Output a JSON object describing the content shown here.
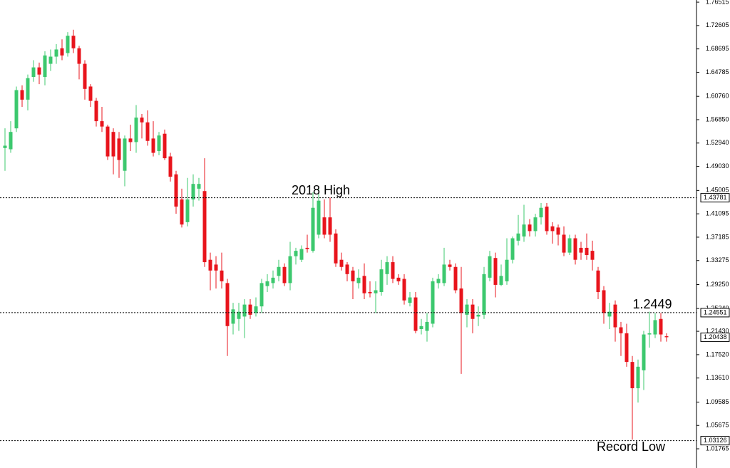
{
  "chart_data": {
    "type": "candlestick",
    "ylim": [
      0.9855,
      1.7688
    ],
    "yticks": [
      1.76515,
      1.72605,
      1.68695,
      1.64785,
      {
        "value": 1.6076,
        "label": "1.60760"
      },
      {
        "value": 1.5685,
        "label": "1.56850"
      },
      {
        "value": 1.5294,
        "label": "1.52940"
      },
      {
        "value": 1.4903,
        "label": "1.49030"
      },
      1.45005,
      1.41095,
      1.37185,
      1.33275,
      {
        "value": 1.2925,
        "label": "1.29250"
      },
      {
        "value": 1.2524,
        "label": "1.25240"
      },
      {
        "value": 1.2143,
        "label": "1.21430"
      },
      {
        "value": 1.1752,
        "label": "1.17520"
      },
      {
        "value": 1.1361,
        "label": "1.13610"
      },
      1.09585,
      1.05675,
      1.01765
    ],
    "up_color": "#3cc86e",
    "down_color": "#e8141c",
    "open": [
      1.521,
      1.519,
      1.554,
      1.618,
      1.602,
      1.64,
      1.656,
      1.64,
      1.662,
      1.674,
      1.688,
      1.68,
      1.709,
      1.688,
      1.662,
      1.624,
      1.6,
      1.566,
      1.557,
      1.548,
      1.537,
      1.483,
      1.537,
      1.531,
      1.572,
      1.564,
      1.537,
      1.516,
      1.545,
      1.507,
      1.477,
      1.435,
      1.397,
      1.435,
      1.453,
      1.449,
      1.334,
      1.326,
      1.316,
      1.295,
      1.227,
      1.235,
      1.239,
      1.259,
      1.245,
      1.256,
      1.29,
      1.295,
      1.307,
      1.322,
      1.295,
      1.34,
      1.334,
      1.354,
      1.349,
      1.376,
      1.405,
      1.405,
      1.378,
      1.334,
      1.326,
      1.316,
      1.295,
      1.307,
      1.28,
      1.278,
      1.28,
      1.31,
      1.33,
      1.304,
      1.302,
      1.262,
      1.271,
      1.218,
      1.215,
      1.227,
      1.295,
      1.295,
      1.326,
      1.322,
      1.286,
      1.242,
      1.259,
      1.239,
      1.242,
      1.304,
      1.337,
      1.292,
      1.298,
      1.334,
      1.366,
      1.373,
      1.393,
      1.382,
      1.405,
      1.423,
      1.39,
      1.388,
      1.376,
      1.346,
      1.37,
      1.354,
      1.354,
      1.349,
      1.316,
      1.283,
      1.239,
      1.259,
      1.221,
      1.211,
      1.163,
      1.119,
      1.149,
      1.209,
      1.209,
      1.235,
      1.206
    ],
    "high": [
      1.554,
      1.566,
      1.624,
      1.626,
      1.644,
      1.668,
      1.664,
      1.683,
      1.686,
      1.695,
      1.703,
      1.715,
      1.719,
      1.692,
      1.668,
      1.628,
      1.605,
      1.59,
      1.56,
      1.554,
      1.548,
      1.542,
      1.56,
      1.593,
      1.578,
      1.584,
      1.566,
      1.548,
      1.552,
      1.513,
      1.483,
      1.453,
      1.471,
      1.477,
      1.471,
      1.504,
      1.346,
      1.34,
      1.346,
      1.302,
      1.262,
      1.262,
      1.268,
      1.268,
      1.271,
      1.302,
      1.31,
      1.316,
      1.334,
      1.328,
      1.364,
      1.354,
      1.358,
      1.376,
      1.447,
      1.457,
      1.435,
      1.438,
      1.385,
      1.346,
      1.33,
      1.322,
      1.318,
      1.328,
      1.298,
      1.298,
      1.334,
      1.34,
      1.34,
      1.31,
      1.31,
      1.28,
      1.28,
      1.235,
      1.245,
      1.304,
      1.31,
      1.354,
      1.334,
      1.328,
      1.322,
      1.268,
      1.268,
      1.256,
      1.322,
      1.349,
      1.346,
      1.326,
      1.37,
      1.373,
      1.409,
      1.426,
      1.402,
      1.411,
      1.429,
      1.429,
      1.397,
      1.393,
      1.39,
      1.376,
      1.376,
      1.364,
      1.378,
      1.366,
      1.322,
      1.29,
      1.262,
      1.266,
      1.23,
      1.227,
      1.173,
      1.167,
      1.215,
      1.247,
      1.245,
      1.245,
      1.211
    ],
    "low": [
      1.483,
      1.513,
      1.548,
      1.59,
      1.584,
      1.632,
      1.628,
      1.626,
      1.65,
      1.662,
      1.668,
      1.674,
      1.68,
      1.636,
      1.602,
      1.59,
      1.557,
      1.548,
      1.501,
      1.477,
      1.471,
      1.457,
      1.516,
      1.513,
      1.537,
      1.525,
      1.507,
      1.509,
      1.501,
      1.465,
      1.411,
      1.388,
      1.39,
      1.423,
      1.433,
      1.322,
      1.283,
      1.286,
      1.286,
      1.173,
      1.209,
      1.215,
      1.203,
      1.235,
      1.239,
      1.245,
      1.28,
      1.286,
      1.298,
      1.29,
      1.283,
      1.326,
      1.33,
      1.346,
      1.346,
      1.37,
      1.37,
      1.364,
      1.322,
      1.316,
      1.298,
      1.268,
      1.286,
      1.268,
      1.271,
      1.245,
      1.274,
      1.292,
      1.295,
      1.292,
      1.259,
      1.256,
      1.211,
      1.209,
      1.197,
      1.221,
      1.286,
      1.29,
      1.316,
      1.278,
      1.143,
      1.221,
      1.211,
      1.223,
      1.235,
      1.298,
      1.271,
      1.29,
      1.292,
      1.328,
      1.358,
      1.364,
      1.373,
      1.373,
      1.393,
      1.376,
      1.361,
      1.358,
      1.34,
      1.342,
      1.326,
      1.334,
      1.334,
      1.316,
      1.268,
      1.227,
      1.218,
      1.197,
      1.173,
      1.155,
      1.033,
      1.095,
      1.116,
      1.187,
      1.203,
      1.197,
      1.197
    ],
    "close": [
      1.525,
      1.548,
      1.618,
      1.602,
      1.638,
      1.656,
      1.644,
      1.676,
      1.674,
      1.686,
      1.676,
      1.709,
      1.688,
      1.662,
      1.62,
      1.6,
      1.566,
      1.557,
      1.507,
      1.507,
      1.501,
      1.537,
      1.531,
      1.572,
      1.564,
      1.533,
      1.513,
      1.542,
      1.504,
      1.473,
      1.423,
      1.393,
      1.435,
      1.461,
      1.461,
      1.33,
      1.316,
      1.316,
      1.298,
      1.223,
      1.251,
      1.247,
      1.259,
      1.242,
      1.256,
      1.295,
      1.298,
      1.304,
      1.322,
      1.295,
      1.34,
      1.349,
      1.352,
      1.352,
      1.421,
      1.433,
      1.376,
      1.376,
      1.328,
      1.322,
      1.31,
      1.298,
      1.304,
      1.278,
      1.278,
      1.283,
      1.318,
      1.33,
      1.302,
      1.298,
      1.266,
      1.271,
      1.215,
      1.223,
      1.23,
      1.298,
      1.302,
      1.326,
      1.322,
      1.283,
      1.245,
      1.259,
      1.235,
      1.242,
      1.31,
      1.34,
      1.292,
      1.307,
      1.334,
      1.37,
      1.378,
      1.393,
      1.382,
      1.405,
      1.421,
      1.382,
      1.382,
      1.376,
      1.346,
      1.37,
      1.334,
      1.346,
      1.342,
      1.334,
      1.28,
      1.245,
      1.247,
      1.221,
      1.211,
      1.163,
      1.119,
      1.155,
      1.209,
      1.211,
      1.233,
      1.209,
      1.2044
    ],
    "levels": [
      1.43781,
      1.24551,
      1.03126
    ],
    "current_price": 1.20438,
    "annotations": [
      "2018 High",
      "1.2449",
      "Record Low"
    ]
  }
}
